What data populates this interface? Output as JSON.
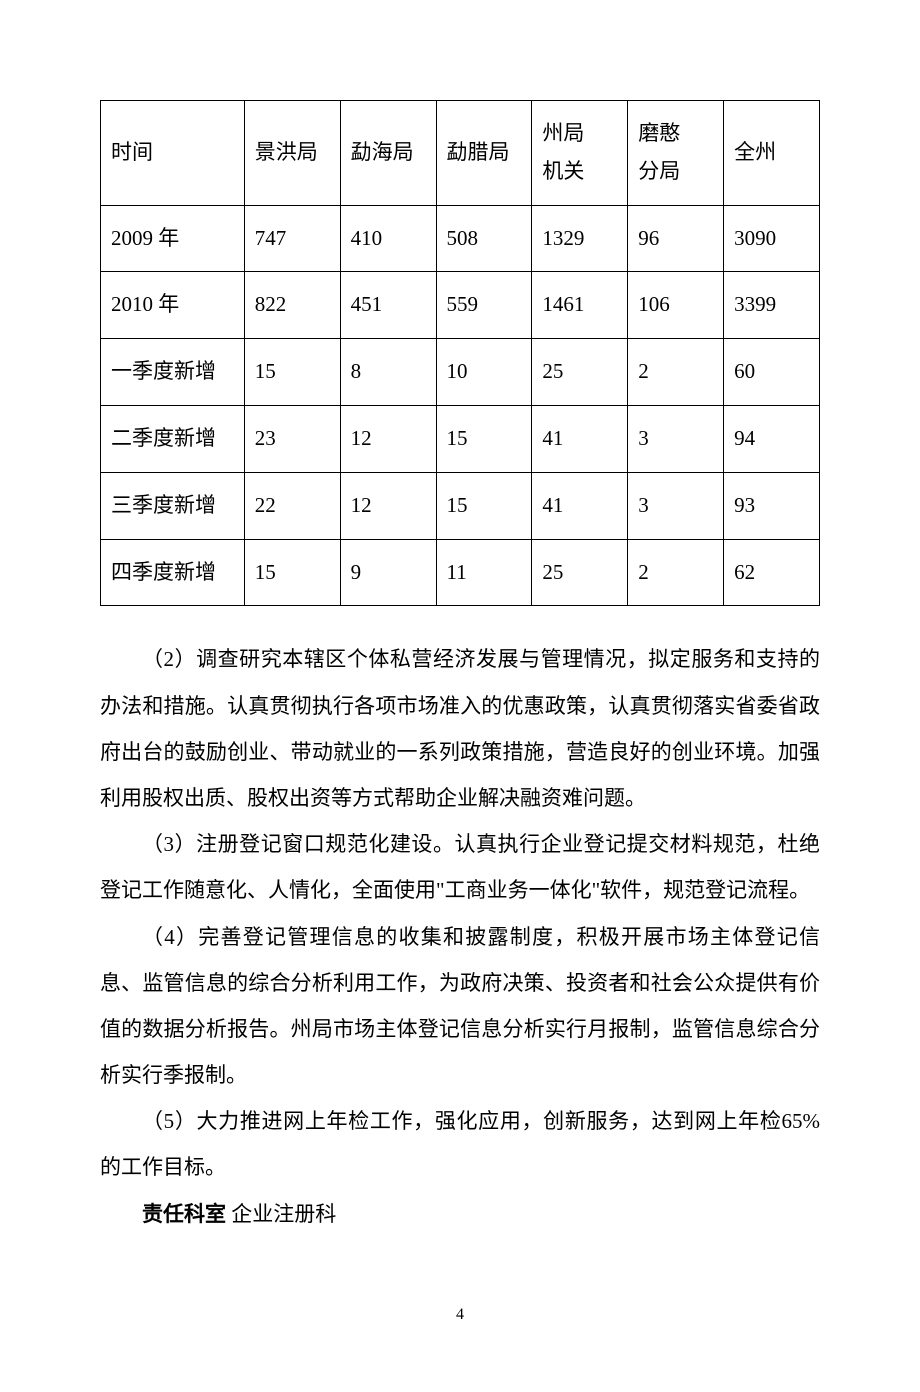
{
  "table": {
    "headers": [
      "时间",
      "景洪局",
      "勐海局",
      "勐腊局",
      "州局\n机关",
      "磨憨\n分局",
      "全州"
    ],
    "rows": [
      [
        "2009 年",
        "747",
        "410",
        "508",
        "1329",
        "96",
        "3090"
      ],
      [
        "2010 年",
        "822",
        "451",
        "559",
        "1461",
        "106",
        "3399"
      ],
      [
        "一季度新增",
        "15",
        "8",
        "10",
        "25",
        "2",
        "60"
      ],
      [
        "二季度新增",
        "23",
        "12",
        "15",
        "41",
        "3",
        "94"
      ],
      [
        "三季度新增",
        "22",
        "12",
        "15",
        "41",
        "3",
        "93"
      ],
      [
        "四季度新增",
        "15",
        "9",
        "11",
        "25",
        "2",
        "62"
      ]
    ]
  },
  "paragraphs": {
    "p2": "（2）调查研究本辖区个体私营经济发展与管理情况，拟定服务和支持的办法和措施。认真贯彻执行各项市场准入的优惠政策，认真贯彻落实省委省政府出台的鼓励创业、带动就业的一系列政策措施，营造良好的创业环境。加强利用股权出质、股权出资等方式帮助企业解决融资难问题。",
    "p3": "（3）注册登记窗口规范化建设。认真执行企业登记提交材料规范，杜绝登记工作随意化、人情化，全面使用\"工商业务一体化\"软件，规范登记流程。",
    "p4": "（4）完善登记管理信息的收集和披露制度，积极开展市场主体登记信息、监管信息的综合分析利用工作，为政府决策、投资者和社会公众提供有价值的数据分析报告。州局市场主体登记信息分析实行月报制，监管信息综合分析实行季报制。",
    "p5": "（5）大力推进网上年检工作，强化应用，创新服务，达到网上年检65%的工作目标。",
    "p6_label": "责任科室",
    "p6_value": " 企业注册科"
  },
  "page_number": "4"
}
